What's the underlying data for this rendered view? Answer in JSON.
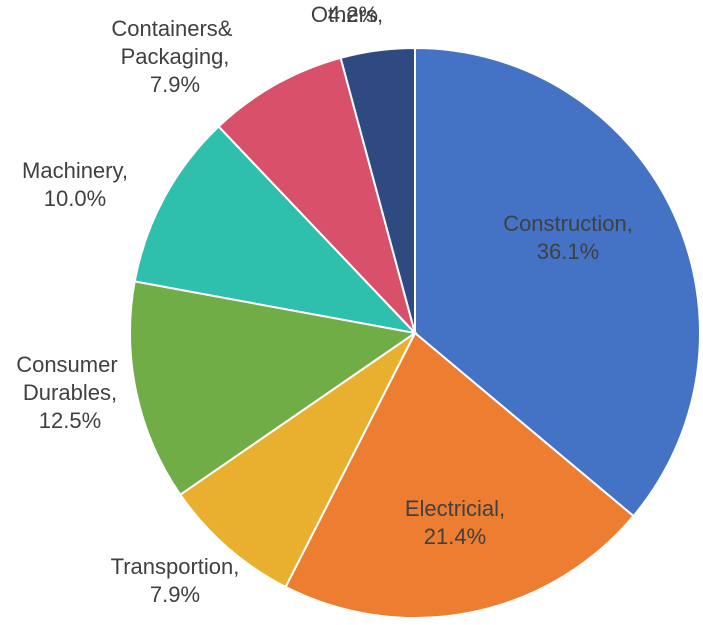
{
  "chart_data": {
    "type": "pie",
    "categories": [
      "Construction,",
      "Electricial,",
      "Transportion,",
      "Consumer Durables,",
      "Machinery,",
      "Containers& Packaging,",
      "Others,"
    ],
    "values": [
      36.1,
      21.4,
      7.9,
      12.5,
      10.0,
      7.9,
      4.2
    ],
    "value_labels": [
      "36.1%",
      "21.4%",
      "7.9%",
      "12.5%",
      "10.0%",
      "7.9%",
      "4.2%"
    ],
    "colors": [
      "#4472c4",
      "#ed7d31",
      "#e9b030",
      "#70ad47",
      "#2ebfad",
      "#d9506a",
      "#2e4a80"
    ]
  }
}
